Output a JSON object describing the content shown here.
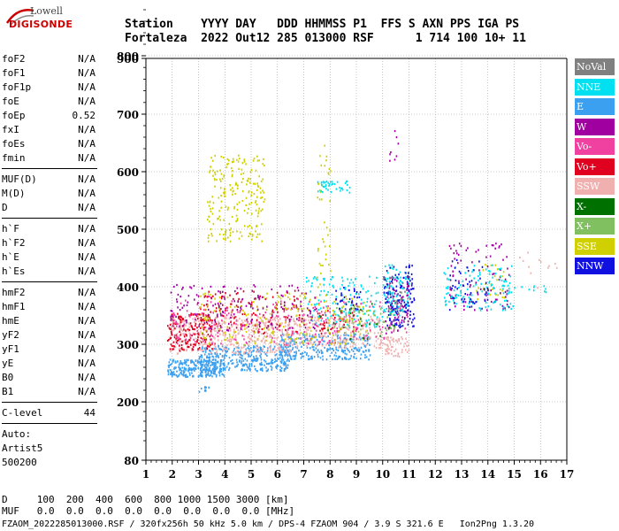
{
  "logo": {
    "top": "Lowell",
    "bottom": "DIGISONDE"
  },
  "header": {
    "line1": "Station    YYYY DAY   DDD HHMMSS P1  FFS S AXN PPS IGA PS",
    "line2": "Fortaleza  2022 Out12 285 013000 RSF      1 714 100 10+ 11"
  },
  "params": [
    {
      "name": "foF2",
      "value": "N/A"
    },
    {
      "name": "foF1",
      "value": "N/A"
    },
    {
      "name": "foF1p",
      "value": "N/A"
    },
    {
      "name": "foE",
      "value": "N/A"
    },
    {
      "name": "foEp",
      "value": "0.52"
    },
    {
      "name": "fxI",
      "value": "N/A"
    },
    {
      "name": "foEs",
      "value": "N/A"
    },
    {
      "name": "fmin",
      "value": "N/A"
    },
    {
      "name": "MUF(D)",
      "value": "N/A"
    },
    {
      "name": "M(D)",
      "value": "N/A"
    },
    {
      "name": "D",
      "value": "N/A"
    },
    {
      "name": "h`F",
      "value": "N/A"
    },
    {
      "name": "h`F2",
      "value": "N/A"
    },
    {
      "name": "h`E",
      "value": "N/A"
    },
    {
      "name": "h`Es",
      "value": "N/A"
    },
    {
      "name": "hmF2",
      "value": "N/A"
    },
    {
      "name": "hmF1",
      "value": "N/A"
    },
    {
      "name": "hmE",
      "value": "N/A"
    },
    {
      "name": "yF2",
      "value": "N/A"
    },
    {
      "name": "yF1",
      "value": "N/A"
    },
    {
      "name": "yE",
      "value": "N/A"
    },
    {
      "name": "B0",
      "value": "N/A"
    },
    {
      "name": "B1",
      "value": "N/A"
    },
    {
      "name": "C-level",
      "value": "44"
    }
  ],
  "auto": [
    "Auto:",
    "Artist5",
    "500200"
  ],
  "legend": [
    {
      "label": "NoVal",
      "color": "#808080"
    },
    {
      "label": "NNE",
      "color": "#00e0f0"
    },
    {
      "label": "E",
      "color": "#3ca0f0"
    },
    {
      "label": "W",
      "color": "#a000a0"
    },
    {
      "label": "Vo-",
      "color": "#f040a0"
    },
    {
      "label": "Vo+",
      "color": "#e00020"
    },
    {
      "label": "SSW",
      "color": "#f0b0b0"
    },
    {
      "label": "X-",
      "color": "#007000"
    },
    {
      "label": "X+",
      "color": "#80c060"
    },
    {
      "label": "SSE",
      "color": "#d0d000"
    },
    {
      "label": "NNW",
      "color": "#1010e0"
    }
  ],
  "bottom": {
    "line1": "D     100  200  400  600  800 1000 1500 3000 [km]",
    "line2": "MUF   0.0  0.0  0.0  0.0  0.0  0.0  0.0  0.0 [MHz]"
  },
  "footer": "FZAOM_2022285013000.RSF / 320fx256h 50 kHz 5.0 km / DPS-4 FZAOM 904 / 3.9 S 321.6 E   Ion2Png 1.3.20",
  "chart_data": {
    "type": "scatter",
    "xlim": [
      1,
      17
    ],
    "ylim": [
      80,
      900
    ],
    "x_ticks": [
      "1",
      "2",
      "3",
      "4",
      "5",
      "6",
      "7",
      "8",
      "9",
      "10",
      "11",
      "12",
      "13",
      "14",
      "15",
      "16",
      "17"
    ],
    "y_ticks": [
      "80",
      "200",
      "300",
      "400",
      "500",
      "600",
      "700",
      "800",
      "900"
    ],
    "y_tick_values": [
      80,
      200,
      300,
      400,
      500,
      600,
      700,
      800,
      900
    ],
    "grid": true,
    "clusters": [
      {
        "color": "#3ca0f0",
        "xmin": 1.8,
        "xmax": 4.0,
        "ymin": 245,
        "ymax": 275,
        "n": 260
      },
      {
        "color": "#3ca0f0",
        "xmin": 3.0,
        "xmax": 6.5,
        "ymin": 255,
        "ymax": 300,
        "n": 360
      },
      {
        "color": "#3ca0f0",
        "xmin": 6.0,
        "xmax": 9.5,
        "ymin": 275,
        "ymax": 320,
        "n": 280
      },
      {
        "color": "#3ca0f0",
        "xmin": 3.0,
        "xmax": 3.4,
        "ymin": 218,
        "ymax": 228,
        "n": 10
      },
      {
        "color": "#f0b0b0",
        "xmin": 1.9,
        "xmax": 6.5,
        "ymin": 285,
        "ymax": 350,
        "n": 420
      },
      {
        "color": "#f0b0b0",
        "xmin": 6.5,
        "xmax": 10.0,
        "ymin": 295,
        "ymax": 350,
        "n": 220
      },
      {
        "color": "#f0b0b0",
        "xmin": 10.0,
        "xmax": 11.0,
        "ymin": 280,
        "ymax": 315,
        "n": 60
      },
      {
        "color": "#e00020",
        "xmin": 1.8,
        "xmax": 3.5,
        "ymin": 290,
        "ymax": 355,
        "n": 170
      },
      {
        "color": "#e00020",
        "xmin": 3.0,
        "xmax": 7.0,
        "ymin": 320,
        "ymax": 395,
        "n": 130
      },
      {
        "color": "#e00020",
        "xmin": 7.5,
        "xmax": 9.0,
        "ymin": 320,
        "ymax": 360,
        "n": 40
      },
      {
        "color": "#f040a0",
        "xmin": 2.0,
        "xmax": 8.5,
        "ymin": 300,
        "ymax": 380,
        "n": 200
      },
      {
        "color": "#f040a0",
        "xmin": 8.5,
        "xmax": 11.0,
        "ymin": 310,
        "ymax": 380,
        "n": 60
      },
      {
        "color": "#d0d000",
        "xmin": 3.3,
        "xmax": 5.5,
        "ymin": 480,
        "ymax": 630,
        "n": 220
      },
      {
        "color": "#d0d000",
        "xmin": 3.0,
        "xmax": 9.5,
        "ymin": 300,
        "ymax": 390,
        "n": 200
      },
      {
        "color": "#d0d000",
        "xmin": 7.5,
        "xmax": 8.0,
        "ymin": 400,
        "ymax": 650,
        "n": 40
      },
      {
        "color": "#d0d000",
        "xmin": 13.5,
        "xmax": 14.6,
        "ymin": 380,
        "ymax": 440,
        "n": 30
      },
      {
        "color": "#a000a0",
        "xmin": 1.9,
        "xmax": 7.5,
        "ymin": 325,
        "ymax": 405,
        "n": 160
      },
      {
        "color": "#a000a0",
        "xmin": 10.0,
        "xmax": 11.0,
        "ymin": 320,
        "ymax": 420,
        "n": 80
      },
      {
        "color": "#a000a0",
        "xmin": 12.5,
        "xmax": 14.8,
        "ymin": 360,
        "ymax": 480,
        "n": 90
      },
      {
        "color": "#a000a0",
        "xmin": 10.2,
        "xmax": 10.6,
        "ymin": 620,
        "ymax": 680,
        "n": 8
      },
      {
        "color": "#00e0f0",
        "xmin": 7.5,
        "xmax": 8.8,
        "ymin": 565,
        "ymax": 585,
        "n": 40
      },
      {
        "color": "#00e0f0",
        "xmin": 7.0,
        "xmax": 10.0,
        "ymin": 330,
        "ymax": 420,
        "n": 140
      },
      {
        "color": "#00e0f0",
        "xmin": 10.0,
        "xmax": 11.0,
        "ymin": 350,
        "ymax": 440,
        "n": 90
      },
      {
        "color": "#00e0f0",
        "xmin": 12.3,
        "xmax": 15.0,
        "ymin": 360,
        "ymax": 440,
        "n": 120
      },
      {
        "color": "#1010e0",
        "xmin": 10.0,
        "xmax": 11.2,
        "ymin": 330,
        "ymax": 440,
        "n": 120
      },
      {
        "color": "#1010e0",
        "xmin": 12.5,
        "xmax": 14.0,
        "ymin": 360,
        "ymax": 450,
        "n": 50
      },
      {
        "color": "#1010e0",
        "xmin": 8.2,
        "xmax": 9.2,
        "ymin": 360,
        "ymax": 400,
        "n": 30
      },
      {
        "color": "#80c060",
        "xmin": 8.0,
        "xmax": 10.5,
        "ymin": 320,
        "ymax": 370,
        "n": 50
      },
      {
        "color": "#007000",
        "xmin": 7.6,
        "xmax": 10.6,
        "ymin": 300,
        "ymax": 380,
        "n": 20
      },
      {
        "color": "#808080",
        "xmin": 10.0,
        "xmax": 11.0,
        "ymin": 340,
        "ymax": 420,
        "n": 25
      },
      {
        "color": "#f0b0b0",
        "xmin": 15.0,
        "xmax": 16.6,
        "ymin": 395,
        "ymax": 465,
        "n": 12
      },
      {
        "color": "#00e0f0",
        "xmin": 14.5,
        "xmax": 16.2,
        "ymin": 390,
        "ymax": 405,
        "n": 15
      }
    ]
  }
}
